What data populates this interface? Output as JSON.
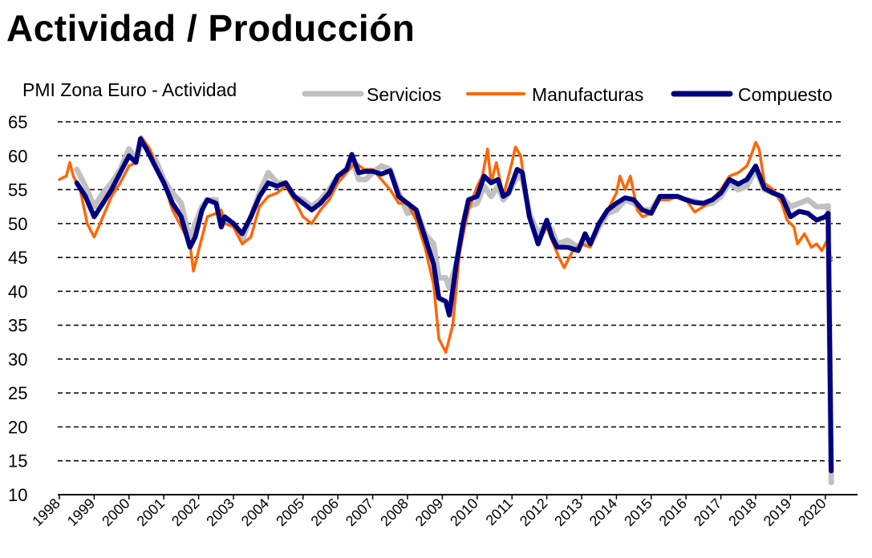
{
  "title": "Actividad / Producción",
  "chart_data": {
    "type": "line",
    "subtitle": "PMI Zona  Euro - Actividad",
    "xlabel": "",
    "ylabel": "",
    "xlim": [
      1998,
      2020.5
    ],
    "ylim": [
      10,
      65
    ],
    "yticks": [
      10,
      15,
      20,
      25,
      30,
      35,
      40,
      45,
      50,
      55,
      60,
      65
    ],
    "xticks": [
      "1998",
      "1999",
      "2000",
      "2001",
      "2002",
      "2003",
      "2004",
      "2005",
      "2006",
      "2007",
      "2008",
      "2009",
      "2010",
      "2011",
      "2012",
      "2013",
      "2014",
      "2015",
      "2016",
      "2017",
      "2018",
      "2019",
      "2020"
    ],
    "grid": true,
    "legend_position": "top",
    "series": [
      {
        "name": "Servicios",
        "color": "#c0c0c0",
        "points": [
          [
            1998.5,
            58
          ],
          [
            1998.75,
            55.5
          ],
          [
            1999.0,
            52.5
          ],
          [
            1999.25,
            54.5
          ],
          [
            1999.5,
            56
          ],
          [
            1999.75,
            58
          ],
          [
            2000.0,
            61
          ],
          [
            2000.2,
            59.5
          ],
          [
            2000.35,
            62
          ],
          [
            2000.6,
            60.5
          ],
          [
            2000.8,
            59
          ],
          [
            2001.0,
            56.5
          ],
          [
            2001.25,
            54.5
          ],
          [
            2001.5,
            53
          ],
          [
            2001.75,
            47.5
          ],
          [
            2001.9,
            50
          ],
          [
            2002.1,
            52.5
          ],
          [
            2002.25,
            53.5
          ],
          [
            2002.5,
            53.5
          ],
          [
            2002.65,
            49.5
          ],
          [
            2002.75,
            50.5
          ],
          [
            2003.0,
            50
          ],
          [
            2003.25,
            47.5
          ],
          [
            2003.5,
            51
          ],
          [
            2003.75,
            54.5
          ],
          [
            2004.0,
            57.5
          ],
          [
            2004.25,
            56
          ],
          [
            2004.5,
            56
          ],
          [
            2004.75,
            54
          ],
          [
            2005.0,
            53.5
          ],
          [
            2005.25,
            52.5
          ],
          [
            2005.5,
            53.5
          ],
          [
            2005.75,
            55
          ],
          [
            2006.0,
            57
          ],
          [
            2006.25,
            58
          ],
          [
            2006.4,
            59.5
          ],
          [
            2006.6,
            56.5
          ],
          [
            2006.8,
            56.5
          ],
          [
            2007.0,
            57.5
          ],
          [
            2007.25,
            58.5
          ],
          [
            2007.5,
            58
          ],
          [
            2007.75,
            54.5
          ],
          [
            2008.0,
            51.5
          ],
          [
            2008.25,
            52
          ],
          [
            2008.5,
            48.5
          ],
          [
            2008.75,
            47
          ],
          [
            2008.9,
            42
          ],
          [
            2009.1,
            42
          ],
          [
            2009.2,
            40.5
          ],
          [
            2009.4,
            44
          ],
          [
            2009.6,
            49.5
          ],
          [
            2009.75,
            52.5
          ],
          [
            2010.0,
            53
          ],
          [
            2010.2,
            55.5
          ],
          [
            2010.4,
            54
          ],
          [
            2010.6,
            55.5
          ],
          [
            2010.75,
            53.5
          ],
          [
            2010.9,
            54.5
          ],
          [
            2011.15,
            57
          ],
          [
            2011.3,
            56.5
          ],
          [
            2011.5,
            51.5
          ],
          [
            2011.75,
            48.5
          ],
          [
            2012.0,
            50
          ],
          [
            2012.15,
            49
          ],
          [
            2012.3,
            47
          ],
          [
            2012.6,
            47.5
          ],
          [
            2012.9,
            46.5
          ],
          [
            2013.1,
            47.5
          ],
          [
            2013.25,
            47
          ],
          [
            2013.5,
            49.5
          ],
          [
            2013.75,
            51.5
          ],
          [
            2014.0,
            52
          ],
          [
            2014.25,
            53.5
          ],
          [
            2014.5,
            53
          ],
          [
            2014.75,
            52
          ],
          [
            2015.0,
            52
          ],
          [
            2015.25,
            54
          ],
          [
            2015.5,
            54
          ],
          [
            2015.75,
            54
          ],
          [
            2016.0,
            53.5
          ],
          [
            2016.25,
            53.3
          ],
          [
            2016.5,
            52.8
          ],
          [
            2016.75,
            53
          ],
          [
            2017.0,
            54
          ],
          [
            2017.25,
            56
          ],
          [
            2017.5,
            55
          ],
          [
            2017.75,
            55.5
          ],
          [
            2018.0,
            58
          ],
          [
            2018.25,
            55
          ],
          [
            2018.5,
            54.5
          ],
          [
            2018.75,
            54
          ],
          [
            2019.0,
            52.5
          ],
          [
            2019.25,
            53
          ],
          [
            2019.5,
            53.5
          ],
          [
            2019.75,
            52.5
          ],
          [
            2020.0,
            52.5
          ],
          [
            2020.08,
            52.6
          ],
          [
            2020.17,
            11.8
          ]
        ]
      },
      {
        "name": "Manufacturas",
        "color": "#ff6600",
        "points": [
          [
            1998.0,
            56.5
          ],
          [
            1998.2,
            57
          ],
          [
            1998.3,
            59
          ],
          [
            1998.4,
            57
          ],
          [
            1998.6,
            55
          ],
          [
            1998.8,
            50
          ],
          [
            1999.0,
            48
          ],
          [
            1999.25,
            51
          ],
          [
            1999.5,
            54
          ],
          [
            1999.75,
            56
          ],
          [
            2000.0,
            58.5
          ],
          [
            2000.2,
            59
          ],
          [
            2000.35,
            62.8
          ],
          [
            2000.6,
            61
          ],
          [
            2000.8,
            58
          ],
          [
            2001.0,
            56
          ],
          [
            2001.25,
            52
          ],
          [
            2001.5,
            49.5
          ],
          [
            2001.75,
            47
          ],
          [
            2001.85,
            43
          ],
          [
            2002.0,
            46
          ],
          [
            2002.25,
            51
          ],
          [
            2002.5,
            51.5
          ],
          [
            2002.65,
            52
          ],
          [
            2002.75,
            50
          ],
          [
            2003.0,
            49.5
          ],
          [
            2003.25,
            47
          ],
          [
            2003.5,
            48
          ],
          [
            2003.75,
            52.5
          ],
          [
            2004.0,
            54
          ],
          [
            2004.25,
            54.5
          ],
          [
            2004.5,
            55.5
          ],
          [
            2004.75,
            53.5
          ],
          [
            2005.0,
            51
          ],
          [
            2005.25,
            50
          ],
          [
            2005.5,
            52
          ],
          [
            2005.75,
            53.5
          ],
          [
            2006.0,
            56
          ],
          [
            2006.25,
            57.5
          ],
          [
            2006.5,
            59
          ],
          [
            2006.75,
            58
          ],
          [
            2007.0,
            58
          ],
          [
            2007.25,
            56.5
          ],
          [
            2007.5,
            55
          ],
          [
            2007.75,
            53
          ],
          [
            2008.0,
            53
          ],
          [
            2008.25,
            50.5
          ],
          [
            2008.5,
            46.5
          ],
          [
            2008.75,
            41
          ],
          [
            2008.9,
            33
          ],
          [
            2009.1,
            31
          ],
          [
            2009.3,
            35
          ],
          [
            2009.5,
            46
          ],
          [
            2009.75,
            52
          ],
          [
            2010.0,
            55.5
          ],
          [
            2010.15,
            57
          ],
          [
            2010.3,
            61
          ],
          [
            2010.4,
            56
          ],
          [
            2010.55,
            59
          ],
          [
            2010.75,
            54
          ],
          [
            2011.0,
            59
          ],
          [
            2011.1,
            61.3
          ],
          [
            2011.25,
            60
          ],
          [
            2011.5,
            51
          ],
          [
            2011.75,
            47
          ],
          [
            2012.0,
            49.5
          ],
          [
            2012.15,
            47.5
          ],
          [
            2012.35,
            45
          ],
          [
            2012.5,
            43.5
          ],
          [
            2012.75,
            46
          ],
          [
            2013.0,
            47
          ],
          [
            2013.25,
            46.5
          ],
          [
            2013.5,
            50
          ],
          [
            2013.75,
            52
          ],
          [
            2014.0,
            54.5
          ],
          [
            2014.1,
            57
          ],
          [
            2014.25,
            55
          ],
          [
            2014.4,
            57
          ],
          [
            2014.6,
            52
          ],
          [
            2014.75,
            51
          ],
          [
            2015.0,
            51.5
          ],
          [
            2015.25,
            53.5
          ],
          [
            2015.5,
            53.5
          ],
          [
            2015.75,
            54
          ],
          [
            2016.0,
            53.5
          ],
          [
            2016.25,
            51.7
          ],
          [
            2016.5,
            52.5
          ],
          [
            2016.75,
            53.5
          ],
          [
            2017.0,
            55
          ],
          [
            2017.25,
            57
          ],
          [
            2017.5,
            57.5
          ],
          [
            2017.75,
            58.5
          ],
          [
            2017.9,
            60.5
          ],
          [
            2018.0,
            62
          ],
          [
            2018.1,
            61
          ],
          [
            2018.25,
            56
          ],
          [
            2018.5,
            55
          ],
          [
            2018.75,
            53
          ],
          [
            2018.9,
            50.5
          ],
          [
            2019.1,
            49.5
          ],
          [
            2019.2,
            47
          ],
          [
            2019.4,
            48.5
          ],
          [
            2019.6,
            46.5
          ],
          [
            2019.75,
            47
          ],
          [
            2019.9,
            46
          ],
          [
            2020.05,
            47.5
          ],
          [
            2020.17,
            44.5
          ]
        ]
      },
      {
        "name": "Compuesto",
        "color": "#000080",
        "points": [
          [
            1998.5,
            56
          ],
          [
            1998.75,
            54
          ],
          [
            1999.0,
            51
          ],
          [
            1999.25,
            53
          ],
          [
            1999.5,
            55
          ],
          [
            1999.75,
            57.5
          ],
          [
            2000.0,
            60
          ],
          [
            2000.2,
            59
          ],
          [
            2000.33,
            62.5
          ],
          [
            2000.5,
            61
          ],
          [
            2000.75,
            58.5
          ],
          [
            2001.0,
            56
          ],
          [
            2001.25,
            53
          ],
          [
            2001.5,
            51
          ],
          [
            2001.75,
            46.5
          ],
          [
            2001.9,
            48
          ],
          [
            2002.1,
            52
          ],
          [
            2002.25,
            53.5
          ],
          [
            2002.5,
            53
          ],
          [
            2002.65,
            49.5
          ],
          [
            2002.75,
            51
          ],
          [
            2003.0,
            50
          ],
          [
            2003.25,
            48.5
          ],
          [
            2003.5,
            51
          ],
          [
            2003.75,
            54
          ],
          [
            2004.0,
            56
          ],
          [
            2004.25,
            55.5
          ],
          [
            2004.5,
            56
          ],
          [
            2004.75,
            54
          ],
          [
            2005.0,
            53
          ],
          [
            2005.25,
            52
          ],
          [
            2005.5,
            53
          ],
          [
            2005.75,
            54.5
          ],
          [
            2006.0,
            57
          ],
          [
            2006.25,
            58
          ],
          [
            2006.4,
            60.2
          ],
          [
            2006.6,
            57.5
          ],
          [
            2006.8,
            57.7
          ],
          [
            2007.0,
            57.7
          ],
          [
            2007.25,
            57.3
          ],
          [
            2007.5,
            57.8
          ],
          [
            2007.75,
            54
          ],
          [
            2008.0,
            53
          ],
          [
            2008.25,
            52
          ],
          [
            2008.5,
            48
          ],
          [
            2008.75,
            44
          ],
          [
            2008.9,
            39
          ],
          [
            2009.1,
            38.5
          ],
          [
            2009.2,
            36.5
          ],
          [
            2009.4,
            44
          ],
          [
            2009.6,
            50
          ],
          [
            2009.75,
            53.5
          ],
          [
            2010.0,
            54
          ],
          [
            2010.2,
            57
          ],
          [
            2010.4,
            56
          ],
          [
            2010.6,
            56.5
          ],
          [
            2010.75,
            54
          ],
          [
            2010.9,
            54.5
          ],
          [
            2011.15,
            58
          ],
          [
            2011.3,
            57.5
          ],
          [
            2011.5,
            51
          ],
          [
            2011.75,
            47
          ],
          [
            2012.0,
            50.5
          ],
          [
            2012.15,
            48
          ],
          [
            2012.3,
            46.5
          ],
          [
            2012.6,
            46.5
          ],
          [
            2012.9,
            46
          ],
          [
            2013.1,
            48.5
          ],
          [
            2013.25,
            47
          ],
          [
            2013.5,
            50
          ],
          [
            2013.75,
            52
          ],
          [
            2014.0,
            53
          ],
          [
            2014.25,
            53.8
          ],
          [
            2014.5,
            53.5
          ],
          [
            2014.75,
            52
          ],
          [
            2015.0,
            51.5
          ],
          [
            2015.25,
            54
          ],
          [
            2015.5,
            54
          ],
          [
            2015.75,
            54
          ],
          [
            2016.0,
            53.5
          ],
          [
            2016.25,
            53.1
          ],
          [
            2016.5,
            53
          ],
          [
            2016.75,
            53.5
          ],
          [
            2017.0,
            54.5
          ],
          [
            2017.25,
            56.5
          ],
          [
            2017.5,
            55.8
          ],
          [
            2017.75,
            56.5
          ],
          [
            2018.0,
            58.5
          ],
          [
            2018.25,
            55.2
          ],
          [
            2018.5,
            54.5
          ],
          [
            2018.75,
            54
          ],
          [
            2019.0,
            51
          ],
          [
            2019.25,
            51.8
          ],
          [
            2019.5,
            51.5
          ],
          [
            2019.75,
            50.5
          ],
          [
            2020.0,
            51
          ],
          [
            2020.08,
            51.5
          ],
          [
            2020.17,
            13.5
          ]
        ]
      }
    ]
  }
}
